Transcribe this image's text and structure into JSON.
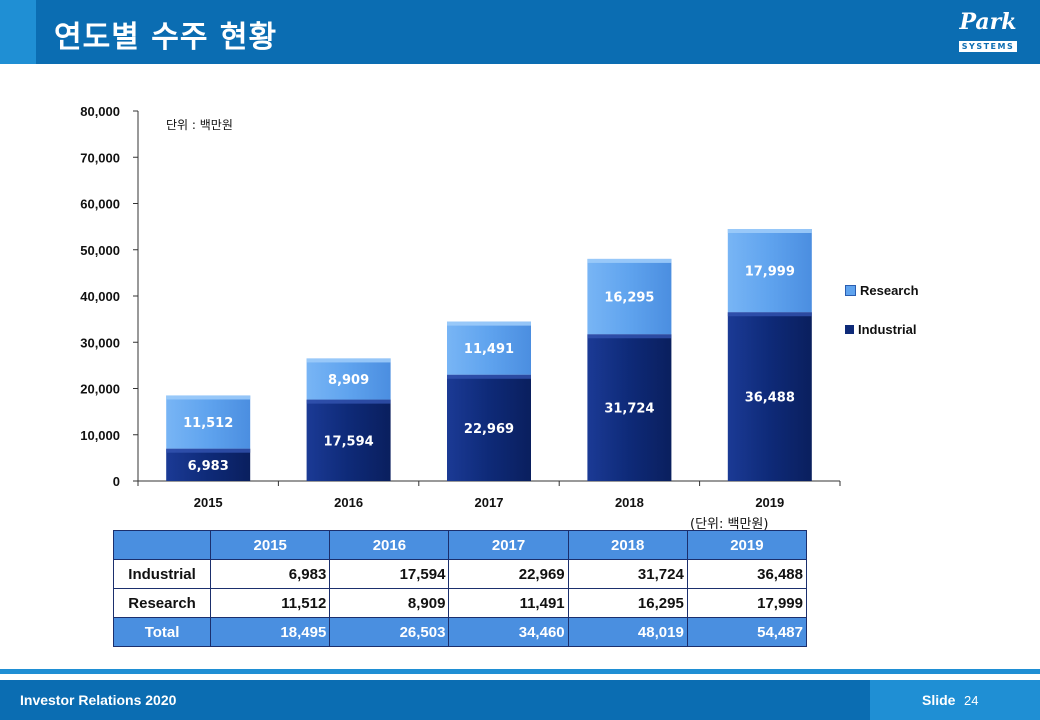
{
  "header": {
    "title": "연도별 수주 현황"
  },
  "logo": {
    "name": "Park",
    "sub": "SYSTEMS"
  },
  "colors": {
    "industrial": "#0e2a78",
    "research": "#5fa3ee",
    "header": "#0b6db2",
    "accent": "#1f8fd4"
  },
  "chart_data": {
    "type": "bar",
    "stacked": true,
    "categories": [
      "2015",
      "2016",
      "2017",
      "2018",
      "2019"
    ],
    "series": [
      {
        "name": "Industrial",
        "values": [
          6983,
          17594,
          22969,
          31724,
          36488
        ]
      },
      {
        "name": "Research",
        "values": [
          11512,
          8909,
          11491,
          16295,
          17999
        ]
      }
    ],
    "ylim": [
      0,
      80000
    ],
    "yticks": [
      "0",
      "10,000",
      "20,000",
      "30,000",
      "40,000",
      "50,000",
      "60,000",
      "70,000",
      "80,000"
    ],
    "unit_note": "단위 : 백만원",
    "legend": [
      "Research",
      "Industrial"
    ],
    "legend_position": "right"
  },
  "table": {
    "unit_note": "(단위: 백만원)",
    "headers": [
      "",
      "2015",
      "2016",
      "2017",
      "2018",
      "2019"
    ],
    "rows": [
      {
        "label": "Industrial",
        "values": [
          "6,983",
          "17,594",
          "22,969",
          "31,724",
          "36,488"
        ]
      },
      {
        "label": "Research",
        "values": [
          "11,512",
          "8,909",
          "11,491",
          "16,295",
          "17,999"
        ]
      },
      {
        "label": "Total",
        "values": [
          "18,495",
          "26,503",
          "34,460",
          "48,019",
          "54,487"
        ]
      }
    ]
  },
  "footer": {
    "text": "Investor Relations 2020",
    "slide_label": "Slide",
    "slide_number": "24"
  }
}
